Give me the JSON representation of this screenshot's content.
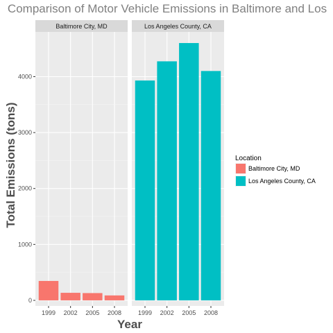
{
  "chart_data": {
    "type": "bar",
    "title": "Comparison of Motor Vehicle Emissions in Baltimore and Los",
    "xlabel": "Year",
    "ylabel": "Total Emissions (tons)",
    "categories": [
      "1999",
      "2002",
      "2005",
      "2008"
    ],
    "ylim": [
      -100,
      4800
    ],
    "yticks": [
      0,
      1000,
      2000,
      3000,
      4000
    ],
    "grid": true,
    "legend": {
      "title": "Location",
      "placement": "right"
    },
    "facets": [
      "Baltimore City, MD",
      "Los Angeles County, CA"
    ],
    "series": [
      {
        "name": "Baltimore City, MD",
        "facet": 0,
        "color": "#F8766D",
        "values": [
          347,
          135,
          130,
          88
        ]
      },
      {
        "name": "Los Angeles County, CA",
        "facet": 1,
        "color": "#00BFC4",
        "values": [
          3931,
          4274,
          4601,
          4101
        ]
      }
    ]
  }
}
